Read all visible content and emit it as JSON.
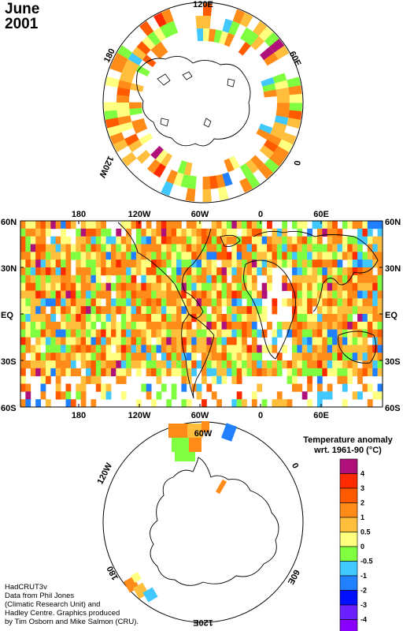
{
  "title": {
    "month": "June",
    "year": "2001"
  },
  "credit": {
    "lines": [
      "HadCRUT3v",
      "Data from Phil Jones",
      "(Climatic Research Unit) and",
      "Hadley Centre.  Graphics produced",
      "by Tim Osborn and Mike Salmon (CRU)."
    ]
  },
  "north_polar": {
    "labels": [
      "120E",
      "60E",
      "0",
      "120W",
      "180"
    ]
  },
  "world_map": {
    "top_lon_labels": [
      "180",
      "120W",
      "60W",
      "0",
      "60E"
    ],
    "bottom_lon_labels": [
      "180",
      "120W",
      "60W",
      "0",
      "60E"
    ],
    "left_lat_labels": [
      "60N",
      "30N",
      "EQ",
      "30S",
      "60S"
    ],
    "right_lat_labels": [
      "60N",
      "30N",
      "EQ",
      "30S",
      "60S"
    ]
  },
  "south_polar": {
    "labels": [
      "60W",
      "0",
      "60E",
      "120E",
      "180",
      "120W"
    ]
  },
  "legend": {
    "title_line1": "Temperature anomaly",
    "title_line2": "wrt. 1961-90  (°C)",
    "levels": [
      {
        "label": "4",
        "color": "#b0107a"
      },
      {
        "label": "3",
        "color": "#ff2a00"
      },
      {
        "label": "2",
        "color": "#ff5a00"
      },
      {
        "label": "1",
        "color": "#ff8c19"
      },
      {
        "label": "0.5",
        "color": "#ffbe3c"
      },
      {
        "label": "0",
        "color": "#ffff80"
      },
      {
        "label": "-0.5",
        "color": "#80ff40"
      },
      {
        "label": "-1",
        "color": "#40c8ff"
      },
      {
        "label": "-2",
        "color": "#2080ff"
      },
      {
        "label": "-3",
        "color": "#0010ff"
      },
      {
        "label": "-4",
        "color": "#6a20ff"
      }
    ],
    "bottom_color": "#8a00ff"
  }
}
